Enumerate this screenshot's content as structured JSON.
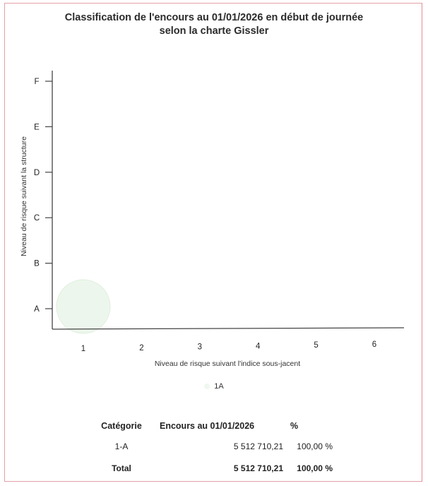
{
  "chart_data": {
    "type": "scatter",
    "title": [
      "Classification de l'encours au 01/01/2026 en début de journée",
      "selon la charte Gissler"
    ],
    "xlabel": "Niveau de risque suivant l'indice sous-jacent",
    "ylabel": "Niveau de risque suivant la structure",
    "x_categories": [
      "1",
      "2",
      "3",
      "4",
      "5",
      "6"
    ],
    "y_categories": [
      "A",
      "B",
      "C",
      "D",
      "E",
      "F"
    ],
    "points": [
      {
        "x": "1",
        "y": "A",
        "value": 5512710.21,
        "percent": 100.0
      }
    ],
    "legend": [
      "1A"
    ],
    "legend_position": "bottom",
    "grid": false,
    "colors": {
      "bubble": "#edf6ec",
      "bubble_edge": "#dfeedd",
      "axis": "#444444",
      "frame_border": "#e3a0a8"
    }
  },
  "table": {
    "headers": [
      "Catégorie",
      "Encours au 01/01/2026",
      "%"
    ],
    "rows": [
      {
        "category": "1-A",
        "encours": "5 512 710,21",
        "percent": "100,00 %"
      }
    ],
    "total": {
      "category": "Total",
      "encours": "5 512 710,21",
      "percent": "100,00 %"
    }
  }
}
